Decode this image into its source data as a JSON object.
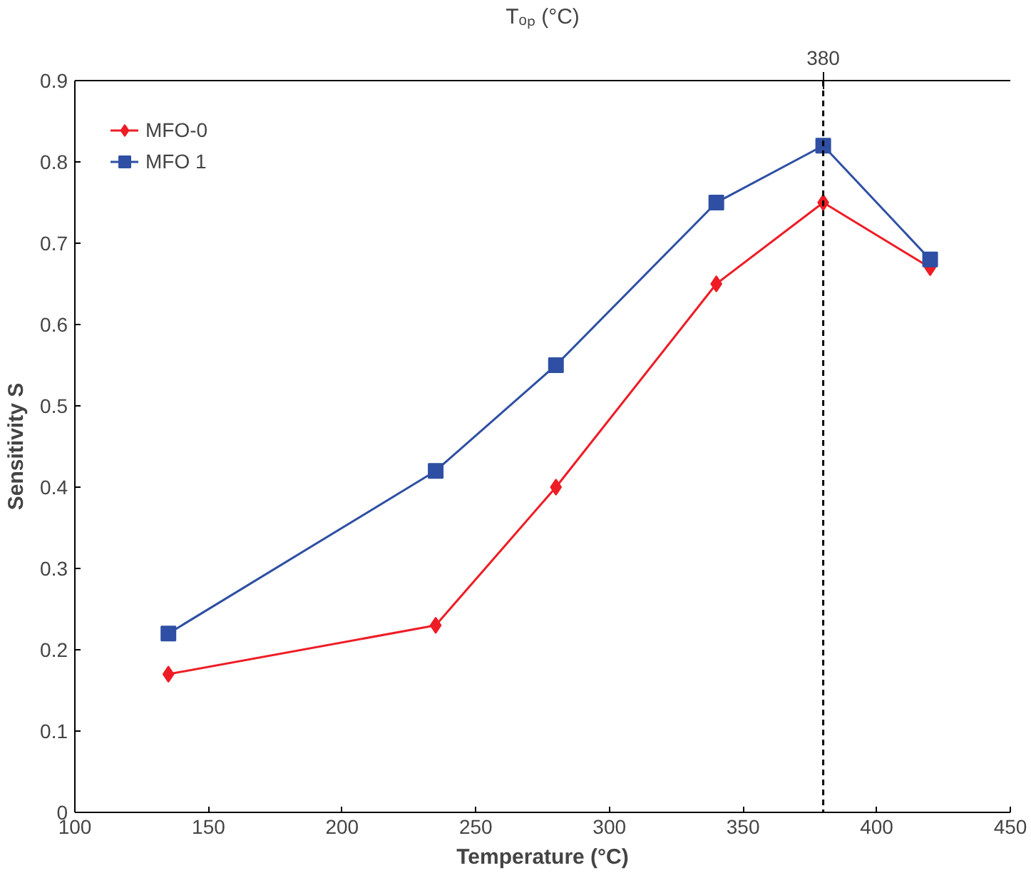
{
  "chart_data": {
    "type": "line",
    "xlabel": "Temperature (°C)",
    "ylabel": "Sensitivity S",
    "annotations": [
      "Tₒₚ (°C)"
    ],
    "x": [
      135,
      235,
      280,
      340,
      380,
      420
    ],
    "series": [
      {
        "name": "MFO-0",
        "color": "#ee1c25",
        "marker": "diamond",
        "values": [
          0.17,
          0.23,
          0.4,
          0.65,
          0.75,
          0.67
        ]
      },
      {
        "name": "MFO 1",
        "color": "#2e4fa3",
        "marker": "square",
        "values": [
          0.22,
          0.42,
          0.55,
          0.75,
          0.82,
          0.68
        ]
      }
    ],
    "xlim": [
      100,
      450
    ],
    "xticks": [
      100,
      150,
      200,
      250,
      300,
      350,
      400,
      450
    ],
    "ylim": [
      0,
      0.9
    ],
    "yticks": [
      0,
      0.1,
      0.2,
      0.3,
      0.4,
      0.5,
      0.6,
      0.7,
      0.8,
      0.9
    ],
    "ref_lines": [
      {
        "axis": "x",
        "value": 380,
        "label": "380",
        "color": "#000000",
        "line_style": "dashed"
      }
    ],
    "grid": false,
    "legend": "top left"
  }
}
